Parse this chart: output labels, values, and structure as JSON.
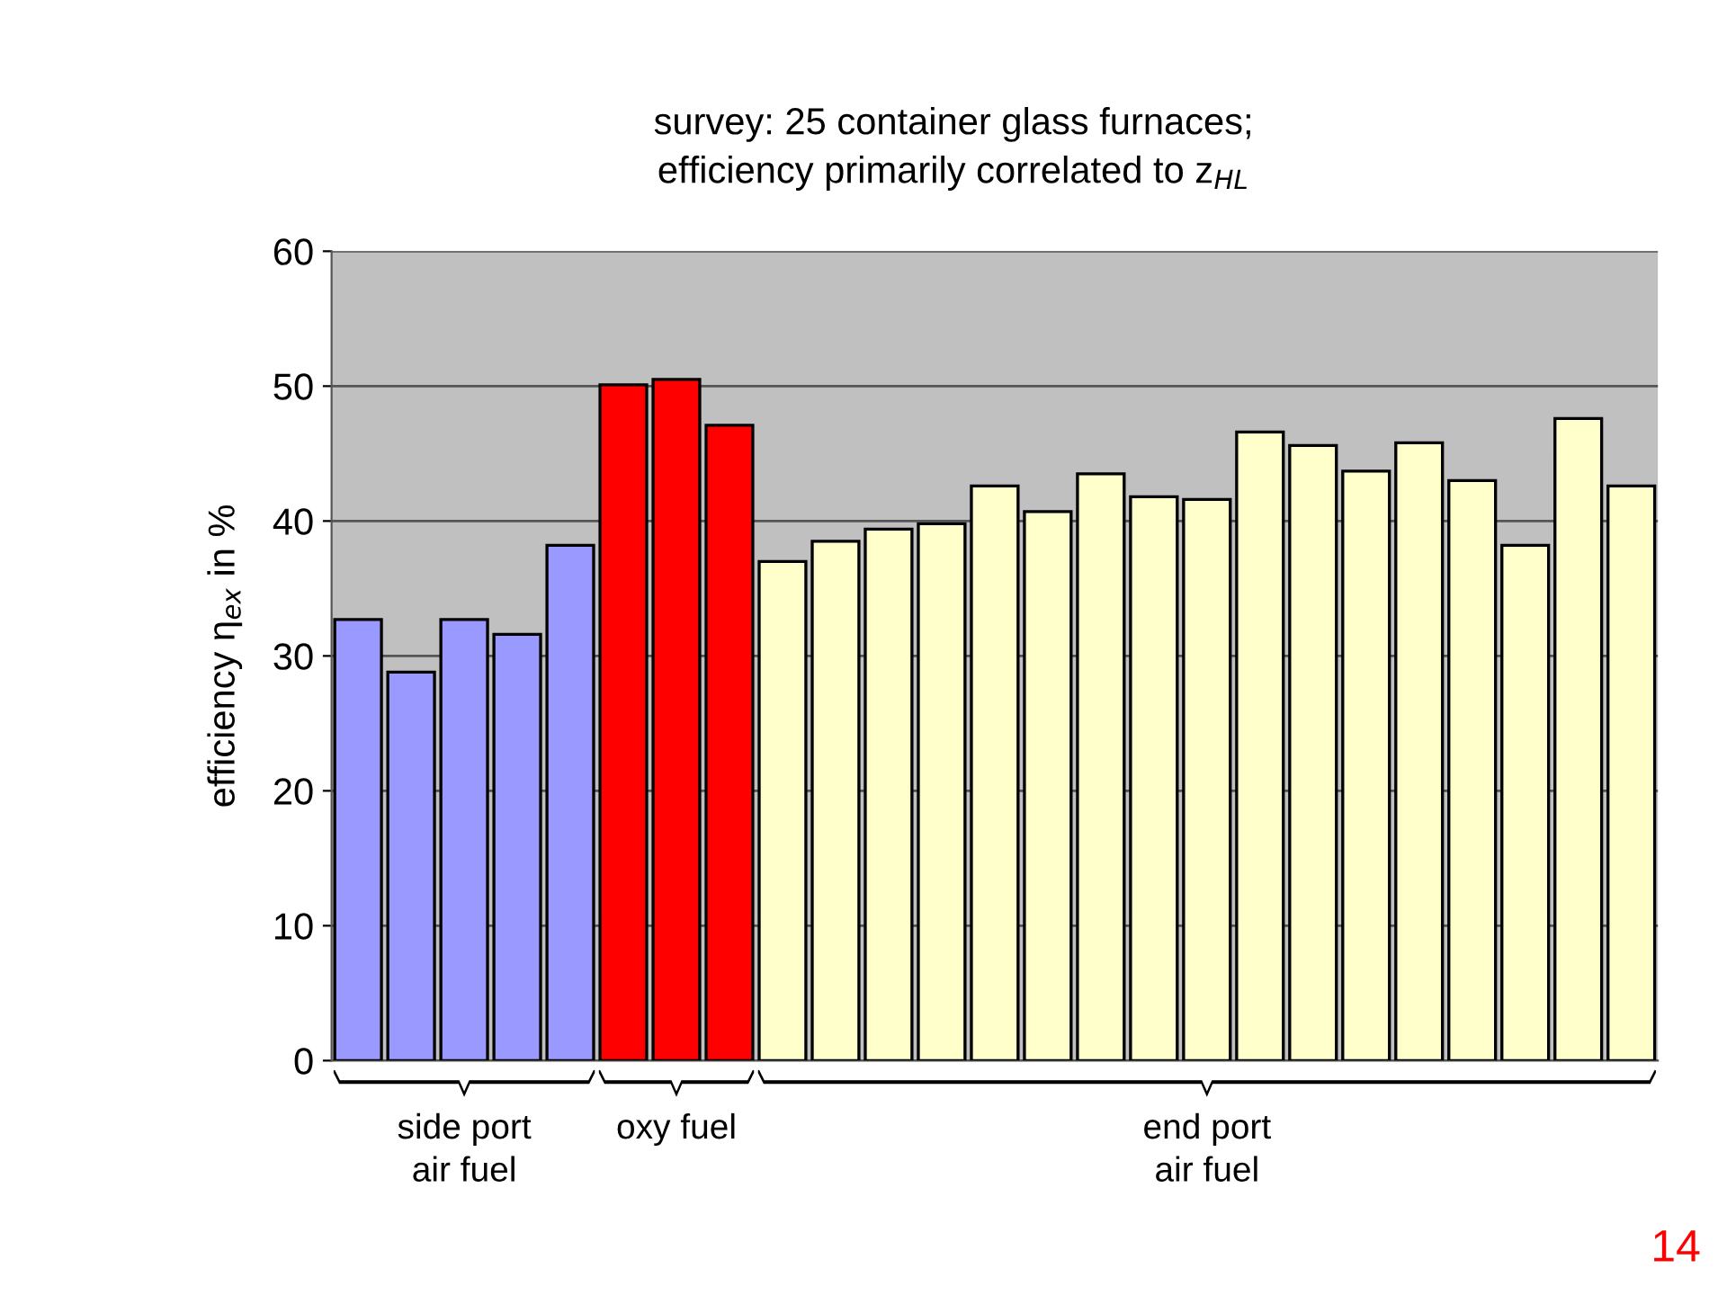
{
  "chart_data": {
    "type": "bar",
    "title": "survey: 25 container glass furnaces;\nefficiency primarily correlated to z$_{HL}$",
    "ylabel": "efficiency η$_{ex}$ in %",
    "categories": [
      null,
      null,
      null,
      null,
      null,
      null,
      null,
      null,
      null,
      null,
      null,
      null,
      null,
      null,
      null,
      null,
      null,
      null,
      null,
      null,
      null,
      null,
      null,
      null,
      null
    ],
    "values": [
      32.7,
      28.8,
      32.7,
      31.6,
      38.2,
      50.1,
      50.5,
      47.1,
      37.0,
      38.5,
      39.4,
      39.8,
      42.6,
      40.7,
      43.5,
      41.8,
      41.6,
      46.6,
      45.6,
      43.7,
      45.8,
      43.0,
      38.2,
      47.6,
      42.6
    ],
    "colors": [
      "#9999ff",
      "#9999ff",
      "#9999ff",
      "#9999ff",
      "#9999ff",
      "#ff0000",
      "#ff0000",
      "#ff0000",
      "#ffffcc",
      "#ffffcc",
      "#ffffcc",
      "#ffffcc",
      "#ffffcc",
      "#ffffcc",
      "#ffffcc",
      "#ffffcc",
      "#ffffcc",
      "#ffffcc",
      "#ffffcc",
      "#ffffcc",
      "#ffffcc",
      "#ffffcc",
      "#ffffcc",
      "#ffffcc",
      "#ffffcc"
    ],
    "ylim": [
      0,
      60
    ],
    "yticks": [
      0,
      10,
      20,
      30,
      40,
      50,
      60
    ],
    "grid": "y",
    "annotations": [
      "side port\nair fuel",
      "oxy fuel",
      "end port\nair fuel",
      "14"
    ]
  }
}
